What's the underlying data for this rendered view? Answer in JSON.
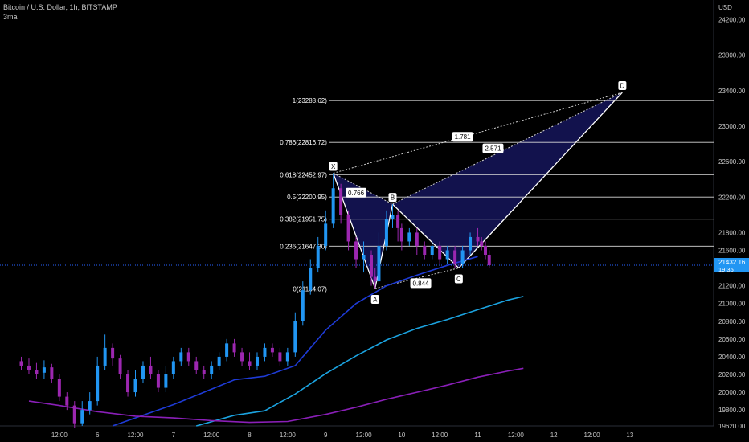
{
  "header": {
    "symbol_line": "Bitcoin / U.S. Dollar, 1h, BITSTAMP",
    "indicator": "3ma"
  },
  "colors": {
    "background": "#000000",
    "up_candle": "#2196f3",
    "down_candle": "#9c27b0",
    "ma_fast": "#1e3bd6",
    "ma_mid": "#1ba3e0",
    "ma_slow": "#8a1fb8",
    "pattern_fill": "#1a1a6e",
    "price_line": "#2962ff",
    "fib_line": "#d9d9d9"
  },
  "chart_data": {
    "type": "candlestick",
    "currency_label": "USD",
    "y_ticks": [
      "24200.00",
      "23800.00",
      "23400.00",
      "23000.00",
      "22600.00",
      "22200.00",
      "21800.00",
      "21600.00",
      "21200.00",
      "21000.00",
      "20800.00",
      "20600.00",
      "20400.00",
      "20200.00",
      "20000.00",
      "19800.00",
      "19620.00"
    ],
    "x_ticks": [
      "12:00",
      "6",
      "12:00",
      "7",
      "12:00",
      "8",
      "12:00",
      "9",
      "12:00",
      "10",
      "12:00",
      "11",
      "12:00",
      "12",
      "12:00",
      "13"
    ],
    "ylim": [
      19620,
      24350
    ],
    "last_price": {
      "value": "21432.16",
      "countdown": "19:35",
      "price": 21432.16
    },
    "fib_levels": [
      {
        "label": "1(23288.62)",
        "price": 23288.62
      },
      {
        "label": "0.786(22816.72)",
        "price": 22816.72
      },
      {
        "label": "0.618(22452.97)",
        "price": 22452.97
      },
      {
        "label": "0.5(22200.95)",
        "price": 22200.95
      },
      {
        "label": "0.382(21951.75)",
        "price": 21951.75
      },
      {
        "label": "0.236(21647.30)",
        "price": 21647.3
      },
      {
        "label": "0(21164.07)",
        "price": 21164.07
      }
    ],
    "pattern": {
      "points": [
        {
          "label": "X",
          "x": 8.1,
          "price": 22470
        },
        {
          "label": "A",
          "x": 8.65,
          "price": 21170
        },
        {
          "label": "B",
          "x": 8.88,
          "price": 22120
        },
        {
          "label": "C",
          "x": 9.75,
          "price": 21400
        },
        {
          "label": "D",
          "x": 11.9,
          "price": 23380
        }
      ],
      "ratios": [
        {
          "label": "0.766",
          "x": 8.4,
          "price": 22250
        },
        {
          "label": "0.844",
          "x": 9.25,
          "price": 21230
        },
        {
          "label": "1.781",
          "x": 9.8,
          "price": 22880
        },
        {
          "label": "2.571",
          "x": 10.2,
          "price": 22750
        }
      ]
    },
    "series": [
      {
        "kind": "ma",
        "color_key": "ma_fast",
        "points": [
          [
            5.2,
            19620
          ],
          [
            5.6,
            19740
          ],
          [
            6.0,
            19860
          ],
          [
            6.4,
            20000
          ],
          [
            6.8,
            20140
          ],
          [
            7.2,
            20180
          ],
          [
            7.6,
            20300
          ],
          [
            8.0,
            20700
          ],
          [
            8.4,
            21000
          ],
          [
            8.8,
            21200
          ],
          [
            9.2,
            21320
          ],
          [
            9.6,
            21430
          ],
          [
            10.0,
            21530
          ]
        ]
      },
      {
        "kind": "ma",
        "color_key": "ma_mid",
        "points": [
          [
            6.3,
            19620
          ],
          [
            6.8,
            19740
          ],
          [
            7.2,
            19790
          ],
          [
            7.6,
            19980
          ],
          [
            8.0,
            20210
          ],
          [
            8.4,
            20410
          ],
          [
            8.8,
            20590
          ],
          [
            9.2,
            20720
          ],
          [
            9.6,
            20820
          ],
          [
            10.0,
            20930
          ],
          [
            10.4,
            21040
          ],
          [
            10.6,
            21080
          ]
        ]
      },
      {
        "kind": "ma",
        "color_key": "ma_slow",
        "points": [
          [
            4.1,
            19900
          ],
          [
            4.5,
            19850
          ],
          [
            5.0,
            19780
          ],
          [
            5.5,
            19730
          ],
          [
            6.0,
            19710
          ],
          [
            6.5,
            19680
          ],
          [
            7.0,
            19660
          ],
          [
            7.5,
            19670
          ],
          [
            8.0,
            19750
          ],
          [
            8.4,
            19830
          ],
          [
            8.8,
            19920
          ],
          [
            9.2,
            20000
          ],
          [
            9.6,
            20080
          ],
          [
            10.0,
            20170
          ],
          [
            10.4,
            20240
          ],
          [
            10.6,
            20270
          ]
        ]
      }
    ],
    "candles": [
      [
        4.0,
        20350,
        20300,
        20400,
        20250
      ],
      [
        4.1,
        20300,
        20250,
        20380,
        20200
      ],
      [
        4.2,
        20250,
        20200,
        20330,
        20150
      ],
      [
        4.3,
        20220,
        20280,
        20360,
        20150
      ],
      [
        4.4,
        20280,
        20150,
        20320,
        20100
      ],
      [
        4.5,
        20150,
        19950,
        20200,
        19900
      ],
      [
        4.6,
        19950,
        19850,
        20000,
        19800
      ],
      [
        4.7,
        19850,
        19650,
        19900,
        19600
      ],
      [
        4.8,
        19650,
        19800,
        19900,
        19620
      ],
      [
        4.9,
        19800,
        19900,
        20000,
        19750
      ],
      [
        5.0,
        19900,
        20300,
        20400,
        19850
      ],
      [
        5.1,
        20300,
        20500,
        20650,
        20250
      ],
      [
        5.2,
        20500,
        20380,
        20550,
        20300
      ],
      [
        5.3,
        20380,
        20200,
        20420,
        20150
      ],
      [
        5.4,
        20200,
        20000,
        20250,
        19950
      ],
      [
        5.5,
        20000,
        20150,
        20250,
        19950
      ],
      [
        5.6,
        20150,
        20300,
        20350,
        20100
      ],
      [
        5.7,
        20300,
        20200,
        20400,
        20150
      ],
      [
        5.8,
        20200,
        20050,
        20250,
        20000
      ],
      [
        5.9,
        20050,
        20200,
        20300,
        20000
      ],
      [
        6.0,
        20200,
        20350,
        20400,
        20150
      ],
      [
        6.1,
        20350,
        20450,
        20500,
        20300
      ],
      [
        6.2,
        20450,
        20350,
        20500,
        20300
      ],
      [
        6.3,
        20350,
        20250,
        20400,
        20200
      ],
      [
        6.4,
        20250,
        20200,
        20300,
        20150
      ],
      [
        6.5,
        20200,
        20300,
        20350,
        20150
      ],
      [
        6.6,
        20300,
        20400,
        20450,
        20250
      ],
      [
        6.7,
        20400,
        20550,
        20600,
        20350
      ],
      [
        6.8,
        20550,
        20450,
        20600,
        20400
      ],
      [
        6.9,
        20450,
        20350,
        20500,
        20300
      ],
      [
        7.0,
        20350,
        20300,
        20450,
        20250
      ],
      [
        7.1,
        20300,
        20400,
        20450,
        20250
      ],
      [
        7.2,
        20400,
        20500,
        20550,
        20350
      ],
      [
        7.3,
        20500,
        20450,
        20550,
        20400
      ],
      [
        7.4,
        20450,
        20350,
        20500,
        20300
      ],
      [
        7.5,
        20350,
        20450,
        20500,
        20300
      ],
      [
        7.6,
        20450,
        20800,
        20900,
        20400
      ],
      [
        7.7,
        20800,
        21150,
        21250,
        20750
      ],
      [
        7.8,
        21150,
        21400,
        21500,
        21100
      ],
      [
        7.9,
        21400,
        21650,
        21750,
        21350
      ],
      [
        8.0,
        21650,
        21900,
        22050,
        21600
      ],
      [
        8.1,
        21900,
        22300,
        22470,
        21850
      ],
      [
        8.2,
        22300,
        22000,
        22350,
        21900
      ],
      [
        8.3,
        22000,
        21700,
        22050,
        21600
      ],
      [
        8.4,
        21700,
        21500,
        21750,
        21400
      ],
      [
        8.5,
        21500,
        21550,
        21700,
        21350
      ],
      [
        8.6,
        21550,
        21300,
        21600,
        21200
      ],
      [
        8.65,
        21300,
        21250,
        21400,
        21170
      ],
      [
        8.7,
        21250,
        21650,
        21800,
        21200
      ],
      [
        8.8,
        21650,
        21950,
        22050,
        21600
      ],
      [
        8.88,
        21950,
        22000,
        22120,
        21850
      ],
      [
        8.95,
        22000,
        21850,
        22050,
        21700
      ],
      [
        9.0,
        21850,
        21700,
        21900,
        21600
      ],
      [
        9.1,
        21700,
        21800,
        21850,
        21650
      ],
      [
        9.2,
        21800,
        21650,
        21850,
        21550
      ],
      [
        9.3,
        21650,
        21550,
        21700,
        21500
      ],
      [
        9.4,
        21550,
        21650,
        21700,
        21500
      ],
      [
        9.5,
        21650,
        21500,
        21700,
        21450
      ],
      [
        9.6,
        21500,
        21600,
        21650,
        21450
      ],
      [
        9.7,
        21600,
        21450,
        21650,
        21400
      ],
      [
        9.8,
        21450,
        21600,
        21650,
        21400
      ],
      [
        9.9,
        21600,
        21750,
        21800,
        21550
      ],
      [
        10.0,
        21750,
        21700,
        21850,
        21650
      ],
      [
        10.05,
        21700,
        21650,
        21750,
        21600
      ],
      [
        10.1,
        21650,
        21550,
        21700,
        21500
      ],
      [
        10.15,
        21550,
        21432,
        21600,
        21400
      ]
    ]
  }
}
